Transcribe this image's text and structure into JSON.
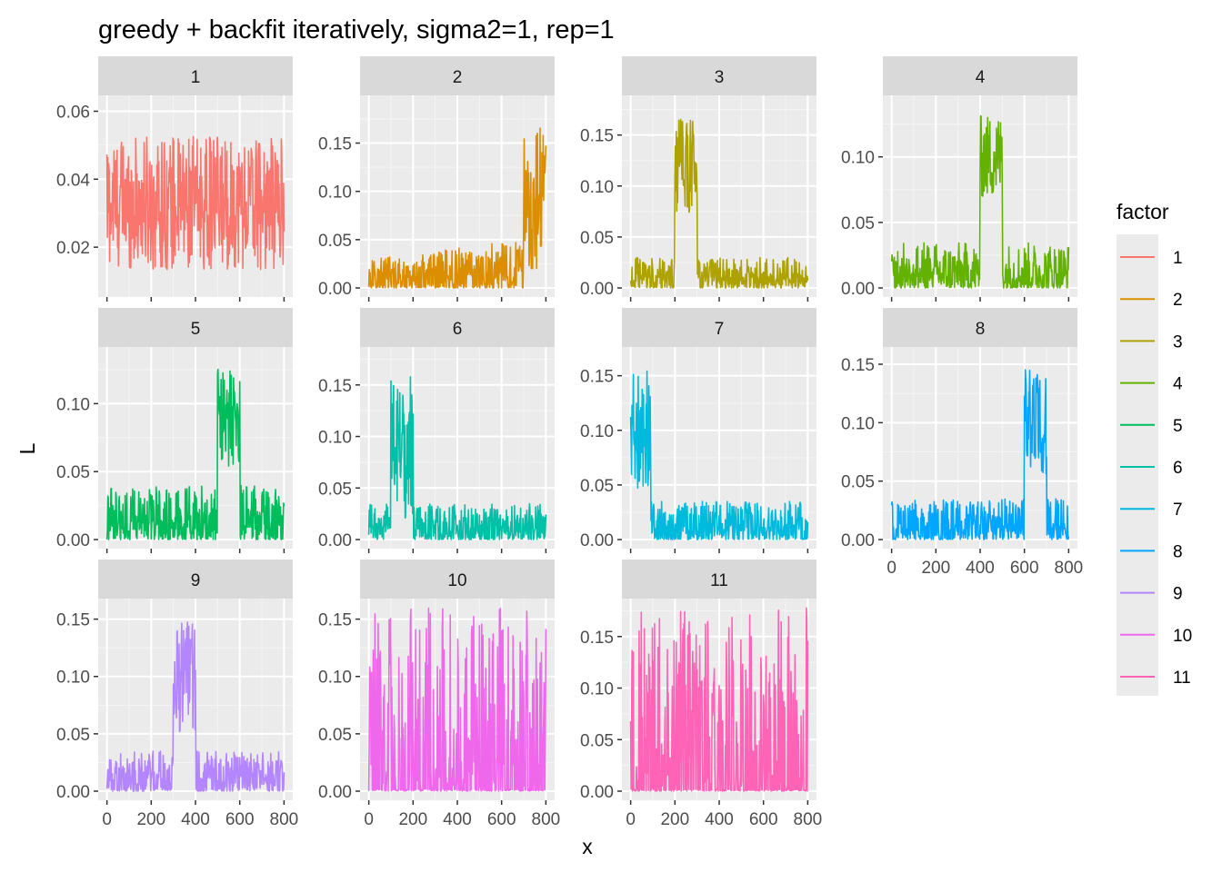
{
  "chart_data": {
    "type": "line",
    "title": "greedy + backfit iteratively, sigma2=1, rep=1",
    "xlabel": "x",
    "ylabel": "L",
    "facet_by": "factor",
    "xlim": [
      0,
      800
    ],
    "x_ticks": [
      "0",
      "200",
      "400",
      "600",
      "800"
    ],
    "grid": true,
    "legend": {
      "title": "factor",
      "position": "right",
      "labels": [
        "1",
        "2",
        "3",
        "4",
        "5",
        "6",
        "7",
        "8",
        "9",
        "10",
        "11"
      ]
    },
    "series": [
      {
        "name": "1",
        "color": "#F8766D",
        "ylim": [
          0.008,
          0.062
        ],
        "y_ticks": [
          "0.02",
          "0.04",
          "0.06"
        ],
        "y_tick_values": [
          0.02,
          0.04,
          0.06
        ],
        "baseline": 0.033,
        "noise": 0.028,
        "blocks": []
      },
      {
        "name": "2",
        "color": "#DB8E00",
        "ylim": [
          0.0,
          0.19
        ],
        "y_ticks": [
          "0.00",
          "0.05",
          "0.10",
          "0.15"
        ],
        "y_tick_values": [
          0.0,
          0.05,
          0.1,
          0.15
        ],
        "baseline": 0.0,
        "noise": 0.03,
        "ramp_to": 0.05,
        "blocks": [
          {
            "x_start": 700,
            "x_end": 800,
            "level": 0.09,
            "peak": 0.185
          }
        ]
      },
      {
        "name": "3",
        "color": "#AEA200",
        "ylim": [
          0.0,
          0.18
        ],
        "y_ticks": [
          "0.00",
          "0.05",
          "0.10",
          "0.15"
        ],
        "y_tick_values": [
          0.0,
          0.05,
          0.1,
          0.15
        ],
        "baseline": 0.0,
        "noise": 0.03,
        "blocks": [
          {
            "x_start": 200,
            "x_end": 300,
            "level": 0.12,
            "peak": 0.178
          }
        ]
      },
      {
        "name": "4",
        "color": "#64B200",
        "ylim": [
          0.0,
          0.14
        ],
        "y_ticks": [
          "0.00",
          "0.05",
          "0.10"
        ],
        "y_tick_values": [
          0.0,
          0.05,
          0.1
        ],
        "baseline": 0.0,
        "noise": 0.035,
        "blocks": [
          {
            "x_start": 400,
            "x_end": 500,
            "level": 0.1,
            "peak": 0.14
          }
        ]
      },
      {
        "name": "5",
        "color": "#00BD5C",
        "ylim": [
          0.0,
          0.135
        ],
        "y_ticks": [
          "0.00",
          "0.05",
          "0.10"
        ],
        "y_tick_values": [
          0.0,
          0.05,
          0.1
        ],
        "baseline": 0.0,
        "noise": 0.04,
        "blocks": [
          {
            "x_start": 500,
            "x_end": 600,
            "level": 0.09,
            "peak": 0.135
          }
        ]
      },
      {
        "name": "6",
        "color": "#00C1A7",
        "ylim": [
          0.0,
          0.178
        ],
        "y_ticks": [
          "0.00",
          "0.05",
          "0.10",
          "0.15"
        ],
        "y_tick_values": [
          0.0,
          0.05,
          0.1,
          0.15
        ],
        "baseline": 0.0,
        "noise": 0.035,
        "blocks": [
          {
            "x_start": 100,
            "x_end": 200,
            "level": 0.09,
            "peak": 0.177
          }
        ]
      },
      {
        "name": "7",
        "color": "#00BADE",
        "ylim": [
          0.0,
          0.168
        ],
        "y_ticks": [
          "0.00",
          "0.05",
          "0.10",
          "0.15"
        ],
        "y_tick_values": [
          0.0,
          0.05,
          0.1,
          0.15
        ],
        "baseline": 0.0,
        "noise": 0.035,
        "blocks": [
          {
            "x_start": 0,
            "x_end": 90,
            "level": 0.1,
            "peak": 0.168
          }
        ]
      },
      {
        "name": "8",
        "color": "#00A6FF",
        "ylim": [
          0.0,
          0.157
        ],
        "y_ticks": [
          "0.00",
          "0.05",
          "0.10",
          "0.15"
        ],
        "y_tick_values": [
          0.0,
          0.05,
          0.1,
          0.15
        ],
        "baseline": 0.0,
        "noise": 0.035,
        "blocks": [
          {
            "x_start": 600,
            "x_end": 700,
            "level": 0.1,
            "peak": 0.157
          }
        ]
      },
      {
        "name": "9",
        "color": "#B385FF",
        "ylim": [
          0.0,
          0.16
        ],
        "y_ticks": [
          "0.00",
          "0.05",
          "0.10",
          "0.15"
        ],
        "y_tick_values": [
          0.0,
          0.05,
          0.1,
          0.15
        ],
        "baseline": 0.0,
        "noise": 0.035,
        "blocks": [
          {
            "x_start": 300,
            "x_end": 400,
            "level": 0.1,
            "peak": 0.16
          }
        ]
      },
      {
        "name": "10",
        "color": "#EF67EB",
        "ylim": [
          0.0,
          0.16
        ],
        "y_ticks": [
          "0.00",
          "0.05",
          "0.10",
          "0.15"
        ],
        "y_tick_values": [
          0.0,
          0.05,
          0.1,
          0.15
        ],
        "baseline": 0.0,
        "noise": 0.16,
        "sparse": true,
        "blocks": []
      },
      {
        "name": "11",
        "color": "#FF63B6",
        "ylim": [
          0.0,
          0.178
        ],
        "y_ticks": [
          "0.00",
          "0.05",
          "0.10",
          "0.15"
        ],
        "y_tick_values": [
          0.0,
          0.05,
          0.1,
          0.15
        ],
        "baseline": 0.0,
        "noise": 0.178,
        "sparse": true,
        "blocks": []
      }
    ]
  }
}
